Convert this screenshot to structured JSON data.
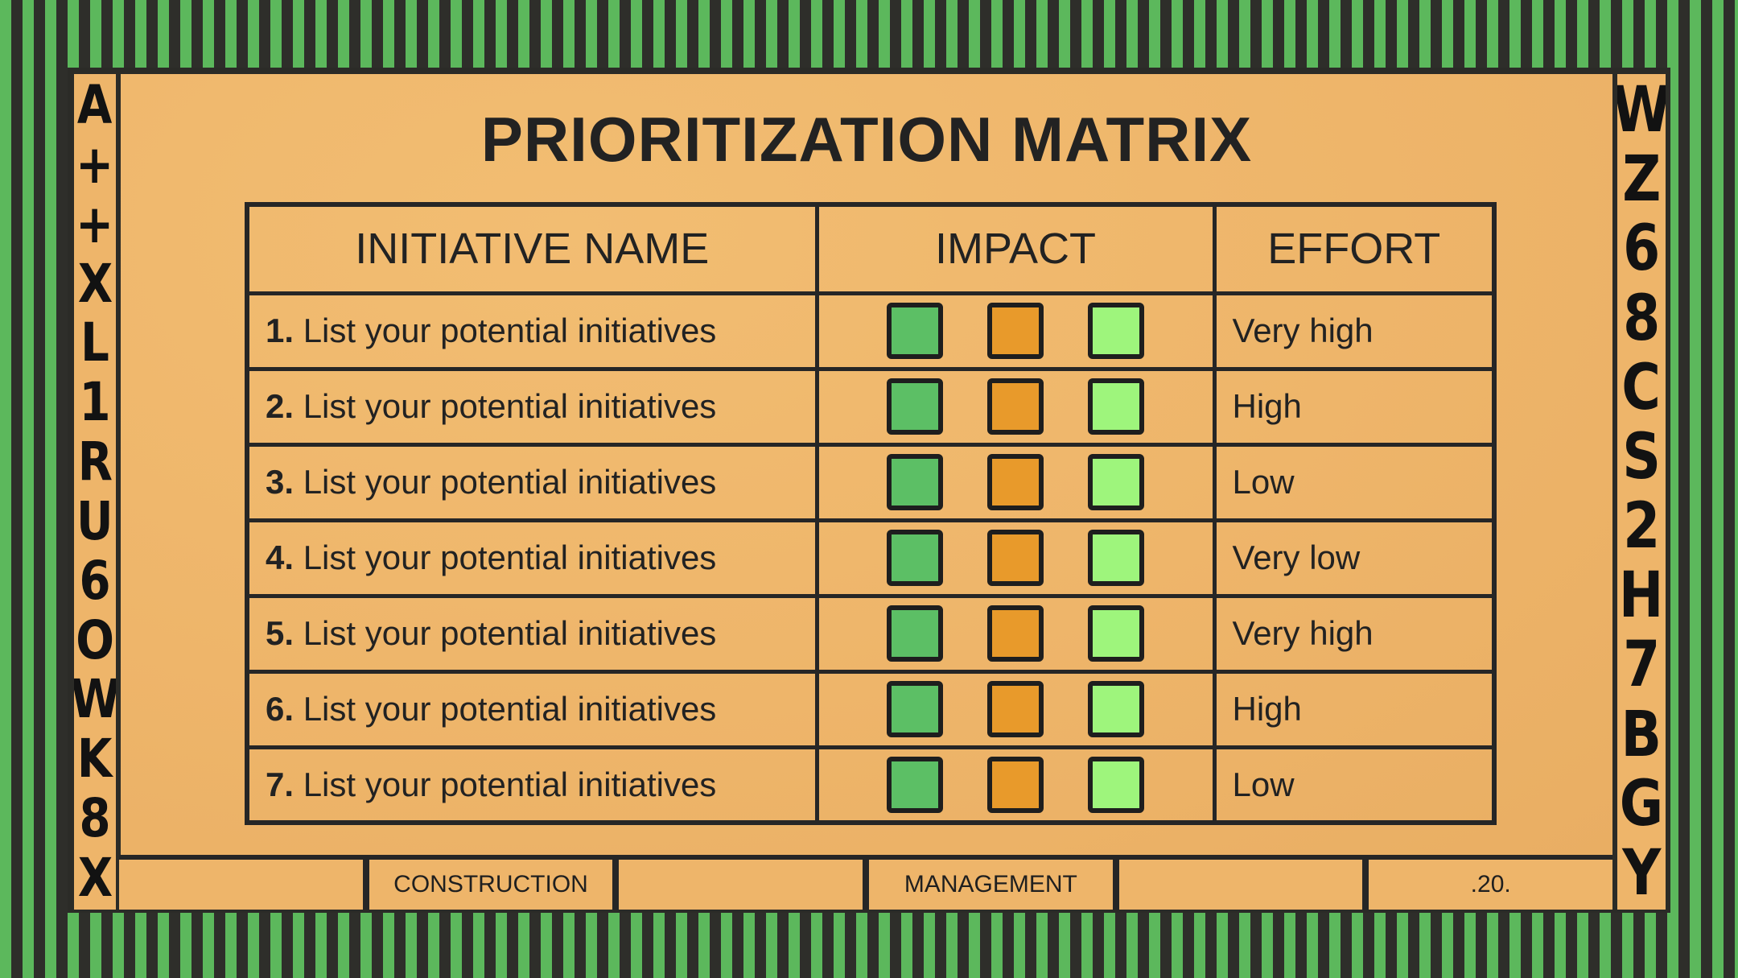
{
  "slide": {
    "title": "PRIORITIZATION MATRIX"
  },
  "table": {
    "headers": [
      "INITIATIVE NAME",
      "IMPACT",
      "EFFORT"
    ],
    "rows": [
      {
        "num": "1.",
        "name": "List your potential initiatives",
        "effort": "Very high"
      },
      {
        "num": "2.",
        "name": "List your potential initiatives",
        "effort": "High"
      },
      {
        "num": "3.",
        "name": "List your potential initiatives",
        "effort": "Low"
      },
      {
        "num": "4.",
        "name": "List your potential initiatives",
        "effort": "Very low"
      },
      {
        "num": "5.",
        "name": "List your potential initiatives",
        "effort": "Very high"
      },
      {
        "num": "6.",
        "name": "List your potential initiatives",
        "effort": "High"
      },
      {
        "num": "7.",
        "name": "List your potential initiatives",
        "effort": "Low"
      }
    ],
    "impact_colors": [
      "#5cbf65",
      "#e89a2b",
      "#9ef57c"
    ]
  },
  "footer": {
    "segments": [
      "",
      "CONSTRUCTION",
      "",
      "MANAGEMENT",
      "",
      ".20."
    ]
  },
  "decor": {
    "left_letters": [
      "A",
      "+",
      "+",
      "X",
      "L",
      "1",
      "R",
      "U",
      "6",
      "O",
      "W",
      "K",
      "8",
      "X"
    ],
    "right_letters": [
      "W",
      "Z",
      "6",
      "8",
      "C",
      "S",
      "2",
      "H",
      "7",
      "B",
      "G",
      "Y"
    ]
  },
  "colors": {
    "stripe_green": "#5cb85c",
    "stripe_dark": "#2e2e2a",
    "paper": "#eeb56a"
  }
}
